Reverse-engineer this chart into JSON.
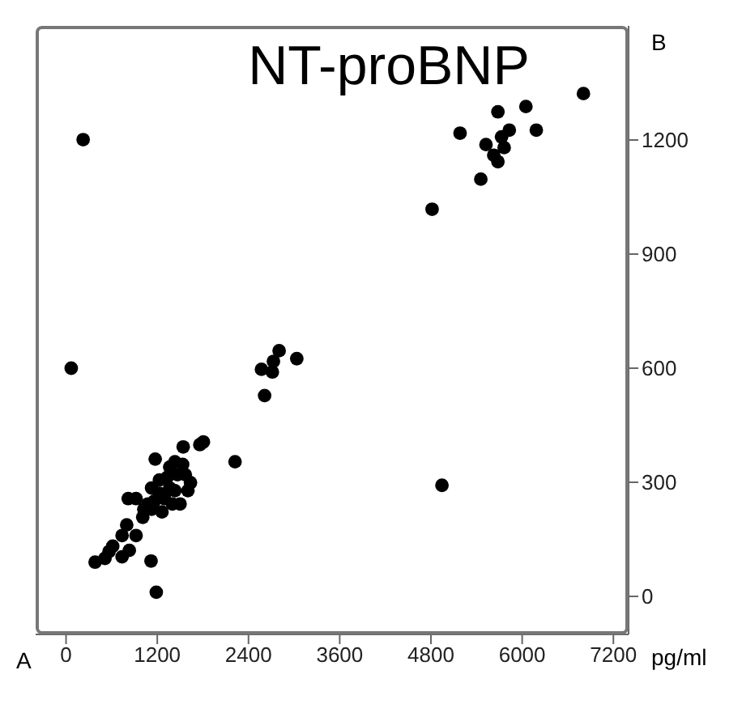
{
  "chart_data": {
    "type": "scatter",
    "title": "NT-proBNP",
    "xlabel": "pg/ml",
    "annotations": [
      "A",
      "B"
    ],
    "x": [
      225,
      68,
      6806,
      6049,
      6186,
      5681,
      5183,
      5831,
      5729,
      5524,
      5763,
      5626,
      5681,
      5456,
      4815,
      4945,
      2803,
      3035,
      2571,
      2728,
      2714,
      2612,
      2223,
      1807,
      1760,
      1541,
      1173,
      1187,
      1118,
      382,
      818,
      921,
      798,
      737,
      921,
      832,
      566,
      614,
      512,
      737,
      1009,
      1077,
      1125,
      1228,
      1364,
      1432,
      1534,
      1637,
      1603,
      1500,
      1296,
      1228,
      1159,
      1330,
      1466,
      1364,
      1398,
      1262,
      1125,
      1569,
      1023,
      1432
    ],
    "series": [
      {
        "color": "#000000",
        "values": [
          1201,
          600,
          1322,
          1288,
          1226,
          1274,
          1218,
          1226,
          1208,
          1188,
          1180,
          1160,
          1143,
          1097,
          1018,
          292,
          646,
          625,
          597,
          618,
          590,
          528,
          354,
          406,
          399,
          393,
          361,
          11,
          93,
          90,
          257,
          257,
          188,
          160,
          160,
          121,
          118,
          132,
          100,
          104,
          208,
          243,
          285,
          306,
          340,
          354,
          347,
          299,
          278,
          243,
          257,
          271,
          250,
          313,
          320,
          285,
          243,
          222,
          229,
          320,
          229,
          278
        ]
      }
    ],
    "xlim": [
      -400,
      7400
    ],
    "ylim": [
      -100,
      1500
    ],
    "xticks": [
      0,
      1200,
      2400,
      3600,
      4800,
      6000,
      7200
    ],
    "yticks": [
      0,
      300,
      600,
      900,
      1200
    ],
    "grid": false,
    "legend": false,
    "marker": "circle"
  }
}
